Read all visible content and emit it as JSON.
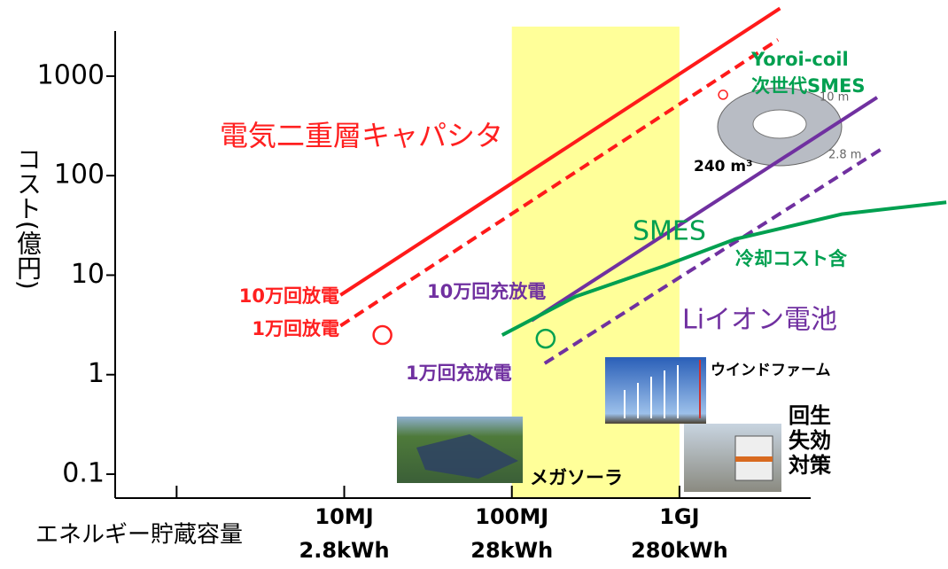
{
  "chart_data": {
    "type": "line",
    "log_x": true,
    "log_y": true,
    "ylabel": "コスト(億円)",
    "xlabel": "エネルギー貯蔵容量",
    "xlim": [
      0.43,
      40000
    ],
    "ylim": [
      0.0575,
      2840
    ],
    "xticks": [
      {
        "value": 1,
        "label": null
      },
      {
        "value": 10,
        "label": "10MJ"
      },
      {
        "value": 100,
        "label": "100MJ"
      },
      {
        "value": 1000,
        "label": "1GJ"
      }
    ],
    "xtick_sublabels": [
      null,
      "2.8kWh",
      "28kWh",
      "280kWh"
    ],
    "yticks": [
      0.1,
      1,
      10,
      100,
      1000
    ],
    "highlight_x": [
      100,
      1000
    ],
    "highlight_color": "#ffff99",
    "series": [
      {
        "name": "10万回放電",
        "color": "#ff1a1a",
        "dash": false,
        "x": [
          9.5,
          3980
        ],
        "values": [
          6.3,
          4800
        ]
      },
      {
        "name": "1万回放電",
        "color": "#ff1a1a",
        "dash": true,
        "x": [
          9.5,
          3870
        ],
        "values": [
          3.1,
          2320
        ]
      },
      {
        "name": "10万回充放電",
        "color": "#7030a0",
        "dash": false,
        "x": [
          131,
          15100
        ],
        "values": [
          3.5,
          611
        ]
      },
      {
        "name": "1万回充放電",
        "color": "#7030a0",
        "dash": true,
        "x": [
          157,
          16100
        ],
        "values": [
          1.3,
          186
        ]
      },
      {
        "name": "SMES",
        "color": "#00a050",
        "dash": false,
        "x": [
          87.5,
          240,
          813,
          2150,
          9290,
          39100
        ],
        "values": [
          2.5,
          6.1,
          12.4,
          23,
          41,
          54
        ]
      }
    ],
    "markers": [
      {
        "x": 16.9,
        "value": 2.5,
        "color": "#ff2020"
      },
      {
        "x": 159,
        "value": 2.3,
        "color": "#00a050"
      },
      {
        "x": 1820,
        "value": 650,
        "color": "#ff2020"
      }
    ],
    "annotations": {
      "capacitor": "電気二重層キャパシタ",
      "cooling": "冷却コスト含",
      "li_ion": "Liイオン電池",
      "yoroi": "Yoroi-coil",
      "next_smes": "次世代SMES",
      "volume": "240 m³",
      "diameter": "10 m",
      "height": "2.8 m",
      "mega_solar": "メガソーラ",
      "wind_farm": "ウインドファーム",
      "regen": [
        "回生",
        "失効",
        "対策"
      ]
    }
  }
}
